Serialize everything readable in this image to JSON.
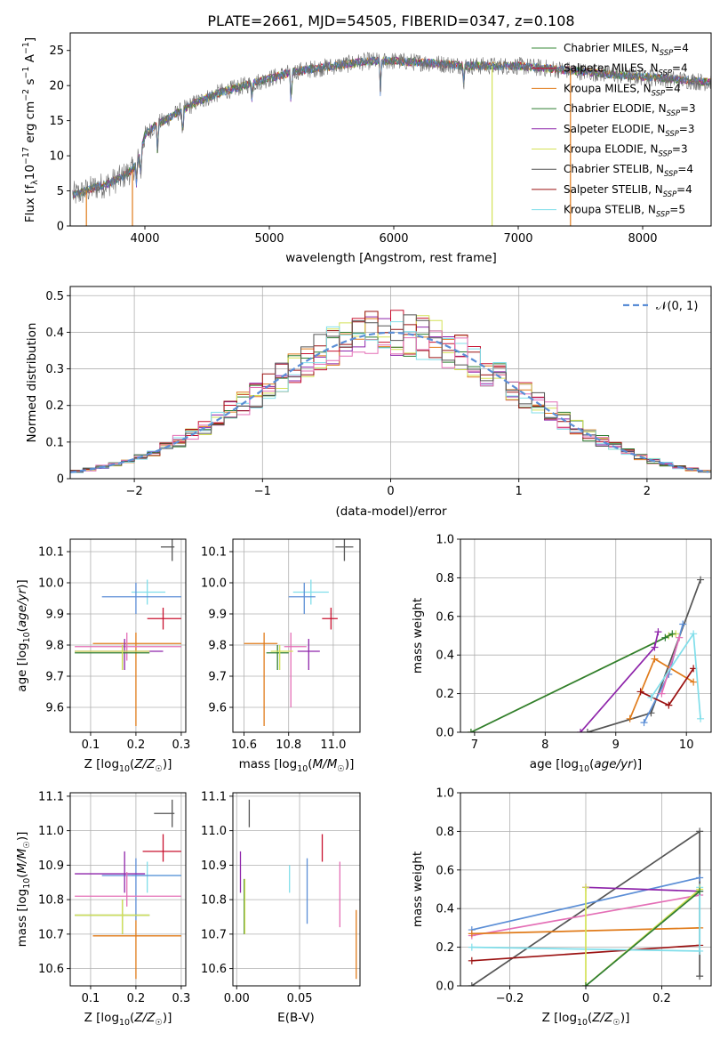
{
  "figure_title": "PLATE=2661, MJD=54505, FIBERID=0347, z=0.108",
  "model_colors": {
    "Chabrier MILES": "#3a8a3a",
    "Salpeter MILES": "#c8102e",
    "Kroupa MILES": "#e07b1a",
    "Chabrier ELODIE": "#2e7d32",
    "Salpeter ELODIE": "#8e24aa",
    "Kroupa ELODIE": "#d4e157",
    "Chabrier STELIB": "#555555",
    "Salpeter STELIB": "#9b1111",
    "Kroupa STELIB": "#80deea"
  },
  "chart_data": [
    {
      "id": "spectrum",
      "type": "line",
      "title": "PLATE=2661, MJD=54505, FIBERID=0347, z=0.108",
      "xlabel": "wavelength [Angstrom, rest frame]",
      "ylabel": "Flux [f_λ10^-17 erg cm^-2 s^-1 A^-1]",
      "xlim": [
        3400,
        8550
      ],
      "ylim": [
        0,
        27.5
      ],
      "xticks": [
        4000,
        5000,
        6000,
        7000,
        8000
      ],
      "yticks": [
        0,
        5,
        10,
        15,
        20,
        25
      ],
      "grid": false,
      "legend_position": "right",
      "legend": [
        {
          "name": "Chabrier MILES",
          "sub": "SSP",
          "n": "4",
          "color": "#3a8a3a"
        },
        {
          "name": "Salpeter MILES",
          "sub": "SSP",
          "n": "4",
          "color": "#c8102e"
        },
        {
          "name": "Kroupa MILES",
          "sub": "SSP",
          "n": "4",
          "color": "#e07b1a"
        },
        {
          "name": "Chabrier ELODIE",
          "sub": "SSP",
          "n": "3",
          "color": "#2e7d32"
        },
        {
          "name": "Salpeter ELODIE",
          "sub": "SSP",
          "n": "3",
          "color": "#8e24aa"
        },
        {
          "name": "Kroupa ELODIE",
          "sub": "SSP",
          "n": "3",
          "color": "#d4e157"
        },
        {
          "name": "Chabrier STELIB",
          "sub": "SSP",
          "n": "4",
          "color": "#555555"
        },
        {
          "name": "Salpeter STELIB",
          "sub": "SSP",
          "n": "4",
          "color": "#9b1111"
        },
        {
          "name": "Kroupa STELIB",
          "sub": "SSP",
          "n": "5",
          "color": "#80deea"
        }
      ],
      "continuum": [
        [
          3450,
          4.5
        ],
        [
          3600,
          5.5
        ],
        [
          3700,
          6.0
        ],
        [
          3800,
          6.8
        ],
        [
          3900,
          8.0
        ],
        [
          3960,
          10.0
        ],
        [
          4000,
          13.0
        ],
        [
          4100,
          14.5
        ],
        [
          4200,
          15.5
        ],
        [
          4400,
          17.5
        ],
        [
          4600,
          19.0
        ],
        [
          4800,
          20.0
        ],
        [
          5000,
          21.0
        ],
        [
          5200,
          22.0
        ],
        [
          5400,
          22.5
        ],
        [
          5600,
          23.0
        ],
        [
          5800,
          23.5
        ],
        [
          6000,
          23.5
        ],
        [
          6300,
          23.2
        ],
        [
          6600,
          22.8
        ],
        [
          7000,
          22.8
        ],
        [
          7400,
          22.2
        ],
        [
          7800,
          21.5
        ],
        [
          8200,
          21.0
        ],
        [
          8500,
          20.5
        ]
      ],
      "absorption_lines": [
        [
          3933,
          6.0
        ],
        [
          3968,
          7.0
        ],
        [
          4102,
          10.5
        ],
        [
          4304,
          12.8
        ],
        [
          4861,
          18.2
        ],
        [
          5175,
          17.0
        ],
        [
          5893,
          19.0
        ],
        [
          6563,
          20.5
        ]
      ],
      "model_cutoffs": [
        3530,
        3900,
        6790,
        7420
      ]
    },
    {
      "id": "residual-histogram",
      "type": "bar",
      "xlabel": "(data-model)/error",
      "ylabel": "Normed distribution",
      "xlim": [
        -2.5,
        2.5
      ],
      "ylim": [
        0,
        0.525
      ],
      "xticks": [
        -2,
        -1,
        0,
        1,
        2
      ],
      "yticks": [
        0,
        0.1,
        0.2,
        0.3,
        0.4,
        0.5
      ],
      "grid": true,
      "bin_width": 0.1,
      "gaussian_label": "𝒩(0, 1)",
      "gaussian_color": "#5b8ed6",
      "legend_position": "top-right"
    },
    {
      "id": "age-vs-Z",
      "type": "scatter",
      "xlabel": "Z [log10(Z/Z☉)]",
      "ylabel": "age [log10(age/yr)]",
      "xlim": [
        0.055,
        0.31
      ],
      "ylim": [
        9.52,
        10.14
      ],
      "xticks": [
        0.1,
        0.2,
        0.3
      ],
      "yticks": [
        9.6,
        9.7,
        9.8,
        9.9,
        10.0,
        10.1
      ],
      "grid": true,
      "points": [
        {
          "model": "Chabrier STELIB",
          "color": "#555555",
          "x": 0.28,
          "y": 10.115,
          "xerr": [
            0.255,
            0.285
          ],
          "yerr": [
            10.07,
            10.14
          ]
        },
        {
          "model": "Kroupa STELIB",
          "color": "#80deea",
          "x": 0.225,
          "y": 9.97,
          "xerr": [
            0.19,
            0.265
          ],
          "yerr": [
            9.93,
            10.01
          ]
        },
        {
          "model": "Chabrier MILES",
          "color": "#5b8ed6",
          "x": 0.2,
          "y": 9.955,
          "xerr": [
            0.125,
            0.3
          ],
          "yerr": [
            9.9,
            10.0
          ]
        },
        {
          "model": "Salpeter STELIB",
          "color": "#c8102e",
          "x": 0.26,
          "y": 9.885,
          "xerr": [
            0.225,
            0.3
          ],
          "yerr": [
            9.85,
            9.92
          ]
        },
        {
          "model": "Kroupa MILES",
          "color": "#e07b1a",
          "x": 0.2,
          "y": 9.805,
          "xerr": [
            0.105,
            0.3
          ],
          "yerr": [
            9.54,
            9.84
          ]
        },
        {
          "model": "Salpeter MILES",
          "color": "#e46fb6",
          "x": 0.18,
          "y": 9.795,
          "xerr": [
            0.065,
            0.3
          ],
          "yerr": [
            9.75,
            9.84
          ]
        },
        {
          "model": "Salpeter ELODIE",
          "color": "#8e24aa",
          "x": 0.175,
          "y": 9.78,
          "xerr": [
            0.065,
            0.26
          ],
          "yerr": [
            9.72,
            9.82
          ]
        },
        {
          "model": "Chabrier ELODIE",
          "color": "#2e7d32",
          "x": 0.17,
          "y": 9.775,
          "xerr": [
            0.065,
            0.23
          ],
          "yerr": [
            9.72,
            9.8
          ]
        },
        {
          "model": "Kroupa ELODIE",
          "color": "#d4e157",
          "x": 0.17,
          "y": 9.78,
          "xerr": [
            0.065,
            0.23
          ],
          "yerr": [
            9.72,
            9.8
          ]
        }
      ]
    },
    {
      "id": "age-vs-mass",
      "type": "scatter",
      "xlabel": "mass [log10(M/M☉)]",
      "ylabel": "",
      "xlim": [
        10.55,
        11.12
      ],
      "ylim": [
        9.52,
        10.14
      ],
      "xticks": [
        10.6,
        10.8,
        11.0
      ],
      "yticks": [
        9.6,
        9.7,
        9.8,
        9.9,
        10.0,
        10.1
      ],
      "grid": true,
      "points": [
        {
          "model": "Chabrier STELIB",
          "color": "#555555",
          "x": 11.05,
          "y": 10.115,
          "xerr": [
            11.01,
            11.09
          ],
          "yerr": [
            10.07,
            10.14
          ]
        },
        {
          "model": "Kroupa STELIB",
          "color": "#80deea",
          "x": 10.9,
          "y": 9.97,
          "xerr": [
            10.82,
            10.98
          ],
          "yerr": [
            9.93,
            10.01
          ]
        },
        {
          "model": "Chabrier MILES",
          "color": "#5b8ed6",
          "x": 10.87,
          "y": 9.955,
          "xerr": [
            10.8,
            10.92
          ],
          "yerr": [
            9.9,
            10.0
          ]
        },
        {
          "model": "Salpeter STELIB",
          "color": "#c8102e",
          "x": 10.99,
          "y": 9.885,
          "xerr": [
            10.95,
            11.02
          ],
          "yerr": [
            9.85,
            9.92
          ]
        },
        {
          "model": "Kroupa MILES",
          "color": "#e07b1a",
          "x": 10.69,
          "y": 9.805,
          "xerr": [
            10.6,
            10.75
          ],
          "yerr": [
            9.54,
            9.84
          ]
        },
        {
          "model": "Salpeter MILES",
          "color": "#e46fb6",
          "x": 10.81,
          "y": 9.795,
          "xerr": [
            10.78,
            10.88
          ],
          "yerr": [
            9.6,
            9.84
          ]
        },
        {
          "model": "Salpeter ELODIE",
          "color": "#8e24aa",
          "x": 10.89,
          "y": 9.78,
          "xerr": [
            10.84,
            10.94
          ],
          "yerr": [
            9.72,
            9.82
          ]
        },
        {
          "model": "Chabrier ELODIE",
          "color": "#2e7d32",
          "x": 10.75,
          "y": 9.775,
          "xerr": [
            10.7,
            10.8
          ],
          "yerr": [
            9.72,
            9.8
          ]
        },
        {
          "model": "Kroupa ELODIE",
          "color": "#d4e157",
          "x": 10.76,
          "y": 9.78,
          "xerr": [
            10.72,
            10.82
          ],
          "yerr": [
            9.72,
            9.8
          ]
        }
      ]
    },
    {
      "id": "mass-weight-vs-age",
      "type": "line",
      "xlabel": "age [log10(age/yr)]",
      "ylabel": "mass weight",
      "xlim": [
        6.8,
        10.35
      ],
      "ylim": [
        0,
        1.0
      ],
      "xticks": [
        7,
        8,
        9,
        10
      ],
      "yticks": [
        0.0,
        0.2,
        0.4,
        0.6,
        0.8,
        1.0
      ],
      "grid": true,
      "series": [
        {
          "color": "#d4e157",
          "x": [
            6.95,
            9.75,
            9.85
          ],
          "y": [
            0.0,
            0.5,
            0.51
          ]
        },
        {
          "color": "#2e7d32",
          "x": [
            6.95,
            9.7,
            9.8
          ],
          "y": [
            0.0,
            0.49,
            0.51
          ]
        },
        {
          "color": "#8e24aa",
          "x": [
            8.5,
            9.55,
            9.6
          ],
          "y": [
            0.0,
            0.44,
            0.52
          ]
        },
        {
          "color": "#555555",
          "x": [
            8.6,
            9.5,
            10.2
          ],
          "y": [
            0.0,
            0.1,
            0.79
          ]
        },
        {
          "color": "#5b8ed6",
          "x": [
            9.4,
            9.75,
            9.95
          ],
          "y": [
            0.05,
            0.3,
            0.56
          ]
        },
        {
          "color": "#e07b1a",
          "x": [
            9.2,
            9.55,
            10.1
          ],
          "y": [
            0.07,
            0.38,
            0.26
          ]
        },
        {
          "color": "#9b1111",
          "x": [
            9.35,
            9.75,
            10.1
          ],
          "y": [
            0.21,
            0.14,
            0.33
          ]
        },
        {
          "color": "#e46fb6",
          "x": [
            9.65,
            9.9
          ],
          "y": [
            0.2,
            0.49
          ]
        },
        {
          "color": "#80deea",
          "x": [
            9.5,
            10.1,
            10.2
          ],
          "y": [
            0.18,
            0.51,
            0.07
          ]
        }
      ]
    },
    {
      "id": "mass-vs-Z",
      "type": "scatter",
      "xlabel": "Z [log10(Z/Z☉)]",
      "ylabel": "mass [log10(M/M☉)]",
      "xlim": [
        0.055,
        0.31
      ],
      "ylim": [
        10.55,
        11.11
      ],
      "xticks": [
        0.1,
        0.2,
        0.3
      ],
      "yticks": [
        10.6,
        10.7,
        10.8,
        10.9,
        11.0,
        11.1
      ],
      "grid": true,
      "points": [
        {
          "model": "Chabrier STELIB",
          "color": "#555555",
          "x": 0.28,
          "y": 11.05,
          "xerr": [
            0.24,
            0.285
          ],
          "yerr": [
            11.01,
            11.09
          ]
        },
        {
          "model": "Salpeter STELIB",
          "color": "#c8102e",
          "x": 0.26,
          "y": 10.94,
          "xerr": [
            0.215,
            0.3
          ],
          "yerr": [
            10.91,
            10.99
          ]
        },
        {
          "model": "Kroupa STELIB",
          "color": "#80deea",
          "x": 0.225,
          "y": 10.87,
          "xerr": [
            0.19,
            0.3
          ],
          "yerr": [
            10.82,
            10.91
          ]
        },
        {
          "model": "Chabrier MILES",
          "color": "#5b8ed6",
          "x": 0.2,
          "y": 10.87,
          "xerr": [
            0.125,
            0.3
          ],
          "yerr": [
            10.74,
            10.92
          ]
        },
        {
          "model": "Salpeter ELODIE",
          "color": "#8e24aa",
          "x": 0.175,
          "y": 10.875,
          "xerr": [
            0.065,
            0.22
          ],
          "yerr": [
            10.82,
            10.94
          ]
        },
        {
          "model": "Salpeter MILES",
          "color": "#e46fb6",
          "x": 0.18,
          "y": 10.81,
          "xerr": [
            0.065,
            0.3
          ],
          "yerr": [
            10.78,
            10.88
          ]
        },
        {
          "model": "Chabrier ELODIE",
          "color": "#2e7d32",
          "x": 0.17,
          "y": 10.755,
          "xerr": [
            0.065,
            0.23
          ],
          "yerr": [
            10.7,
            10.8
          ]
        },
        {
          "model": "Kroupa ELODIE",
          "color": "#d4e157",
          "x": 0.17,
          "y": 10.755,
          "xerr": [
            0.065,
            0.23
          ],
          "yerr": [
            10.7,
            10.8
          ]
        },
        {
          "model": "Kroupa MILES",
          "color": "#e07b1a",
          "x": 0.2,
          "y": 10.695,
          "xerr": [
            0.105,
            0.3
          ],
          "yerr": [
            10.57,
            10.74
          ]
        }
      ]
    },
    {
      "id": "mass-vs-ebv",
      "type": "scatter",
      "xlabel": "E(B-V)",
      "ylabel": "",
      "xlim": [
        -0.003,
        0.098
      ],
      "ylim": [
        10.55,
        11.11
      ],
      "xticks": [
        0.0,
        0.05
      ],
      "yticks": [
        10.6,
        10.7,
        10.8,
        10.9,
        11.0,
        11.1
      ],
      "grid": true,
      "points": [
        {
          "model": "Chabrier STELIB",
          "color": "#555555",
          "x": 0.01,
          "yerr": [
            11.01,
            11.09
          ]
        },
        {
          "model": "Salpeter ELODIE",
          "color": "#8e24aa",
          "x": 0.003,
          "yerr": [
            10.82,
            10.94
          ]
        },
        {
          "model": "Chabrier ELODIE",
          "color": "#2e7d32",
          "x": 0.006,
          "yerr": [
            10.7,
            10.86
          ]
        },
        {
          "model": "Kroupa ELODIE",
          "color": "#d4e157",
          "x": 0.0065,
          "yerr": [
            10.7,
            10.86
          ]
        },
        {
          "model": "Kroupa STELIB",
          "color": "#80deea",
          "x": 0.042,
          "yerr": [
            10.82,
            10.9
          ]
        },
        {
          "model": "Chabrier MILES",
          "color": "#5b8ed6",
          "x": 0.056,
          "yerr": [
            10.73,
            10.92
          ]
        },
        {
          "model": "Salpeter STELIB",
          "color": "#c8102e",
          "x": 0.068,
          "yerr": [
            10.91,
            10.99
          ]
        },
        {
          "model": "Salpeter MILES",
          "color": "#e46fb6",
          "x": 0.082,
          "yerr": [
            10.72,
            10.91
          ]
        },
        {
          "model": "Kroupa MILES",
          "color": "#e07b1a",
          "x": 0.095,
          "yerr": [
            10.57,
            10.77
          ]
        }
      ]
    },
    {
      "id": "mass-weight-vs-Z",
      "type": "line",
      "xlabel": "Z [log10(Z/Z☉)]",
      "ylabel": "mass weight",
      "xlim": [
        -0.33,
        0.33
      ],
      "ylim": [
        0,
        1.0
      ],
      "xticks": [
        -0.2,
        0.0,
        0.2
      ],
      "yticks": [
        0.0,
        0.2,
        0.4,
        0.6,
        0.8,
        1.0
      ],
      "grid": true,
      "series": [
        {
          "color": "#555555",
          "x": [
            -0.3,
            0.3,
            0.3
          ],
          "y": [
            0.0,
            0.8,
            0.05
          ]
        },
        {
          "color": "#5b8ed6",
          "x": [
            -0.3,
            0.3
          ],
          "y": [
            0.29,
            0.56
          ]
        },
        {
          "color": "#8e24aa",
          "x": [
            0.0,
            0.3
          ],
          "y": [
            0.51,
            0.49
          ]
        },
        {
          "color": "#e46fb6",
          "x": [
            -0.3,
            0.3
          ],
          "y": [
            0.26,
            0.47
          ]
        },
        {
          "color": "#e07b1a",
          "x": [
            -0.3,
            0.3
          ],
          "y": [
            0.27,
            0.3
          ]
        },
        {
          "color": "#9b1111",
          "x": [
            -0.3,
            0.3
          ],
          "y": [
            0.13,
            0.21
          ]
        },
        {
          "color": "#80deea",
          "x": [
            -0.3,
            0.3,
            0.3
          ],
          "y": [
            0.2,
            0.18,
            0.51
          ]
        },
        {
          "color": "#d4e157",
          "x": [
            0.0,
            0.0,
            0.3
          ],
          "y": [
            0.51,
            0.0,
            0.5
          ]
        },
        {
          "color": "#2e7d32",
          "x": [
            0.0,
            0.3
          ],
          "y": [
            0.0,
            0.49
          ]
        }
      ]
    }
  ]
}
